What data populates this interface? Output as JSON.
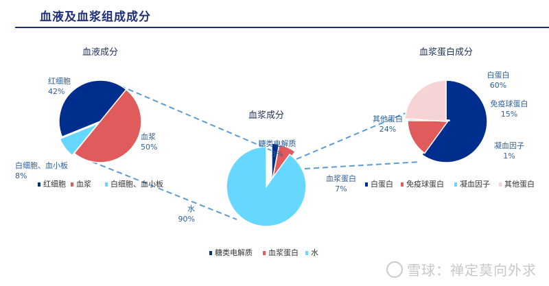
{
  "page": {
    "title": "血液及血浆组成成分",
    "watermark": "雪球：禅定莫向外求"
  },
  "chart_data": [
    {
      "type": "pie",
      "id": "blood",
      "title": "血液成分",
      "slices": [
        {
          "label": "红细胞",
          "value": 42,
          "pct_text": "42%",
          "color": "#002e8f"
        },
        {
          "label": "血浆",
          "value": 50,
          "pct_text": "50%",
          "color": "#e05c5c"
        },
        {
          "label": "白细胞、血小板",
          "value": 8,
          "pct_text": "8%",
          "color": "#66d7ff"
        }
      ]
    },
    {
      "type": "pie",
      "id": "plasma",
      "title": "血浆成分",
      "slices": [
        {
          "label": "糖类电解质",
          "value": 3,
          "pct_text": "3%",
          "color": "#002e8f"
        },
        {
          "label": "血浆蛋白",
          "value": 7,
          "pct_text": "7%",
          "color": "#e05c5c"
        },
        {
          "label": "水",
          "value": 90,
          "pct_text": "90%",
          "color": "#66d7ff"
        }
      ]
    },
    {
      "type": "pie",
      "id": "protein",
      "title": "血浆蛋白成分",
      "slices": [
        {
          "label": "白蛋白",
          "value": 60,
          "pct_text": "60%",
          "color": "#002e8f"
        },
        {
          "label": "免疫球蛋白",
          "value": 15,
          "pct_text": "15%",
          "color": "#e05c5c"
        },
        {
          "label": "凝血因子",
          "value": 1,
          "pct_text": "1%",
          "color": "#66d7ff"
        },
        {
          "label": "其他蛋白",
          "value": 24,
          "pct_text": "24%",
          "color": "#f7d3d6"
        }
      ]
    }
  ]
}
